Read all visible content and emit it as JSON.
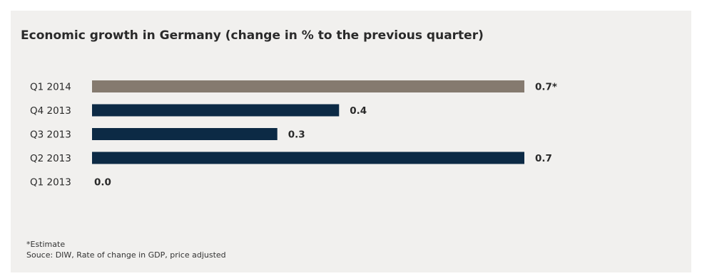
{
  "chart_data": {
    "type": "bar",
    "orientation": "horizontal",
    "title": "Economic growth in Germany (change in % to the previous quarter)",
    "categories": [
      "Q1 2014",
      "Q4 2013",
      "Q3 2013",
      "Q2 2013",
      "Q1 2013"
    ],
    "values": [
      0.7,
      0.4,
      0.3,
      0.7,
      0.0
    ],
    "value_labels": [
      "0.7*",
      "0.4",
      "0.3",
      "0.7",
      "0.0"
    ],
    "bar_colors": [
      "#857a6f",
      "#0c2a45",
      "#0c2a45",
      "#0c2a45",
      "#0c2a45"
    ],
    "xlim": [
      0,
      0.7
    ],
    "grid": false,
    "legend": "none",
    "footnote": "*Estimate",
    "source": "Souce: DIW, Rate of change in GDP, price adjusted"
  },
  "colors": {
    "background": "#f1f0ee",
    "estimate_bar": "#857a6f",
    "bar": "#0c2a45",
    "text": "#2a2a2a"
  }
}
